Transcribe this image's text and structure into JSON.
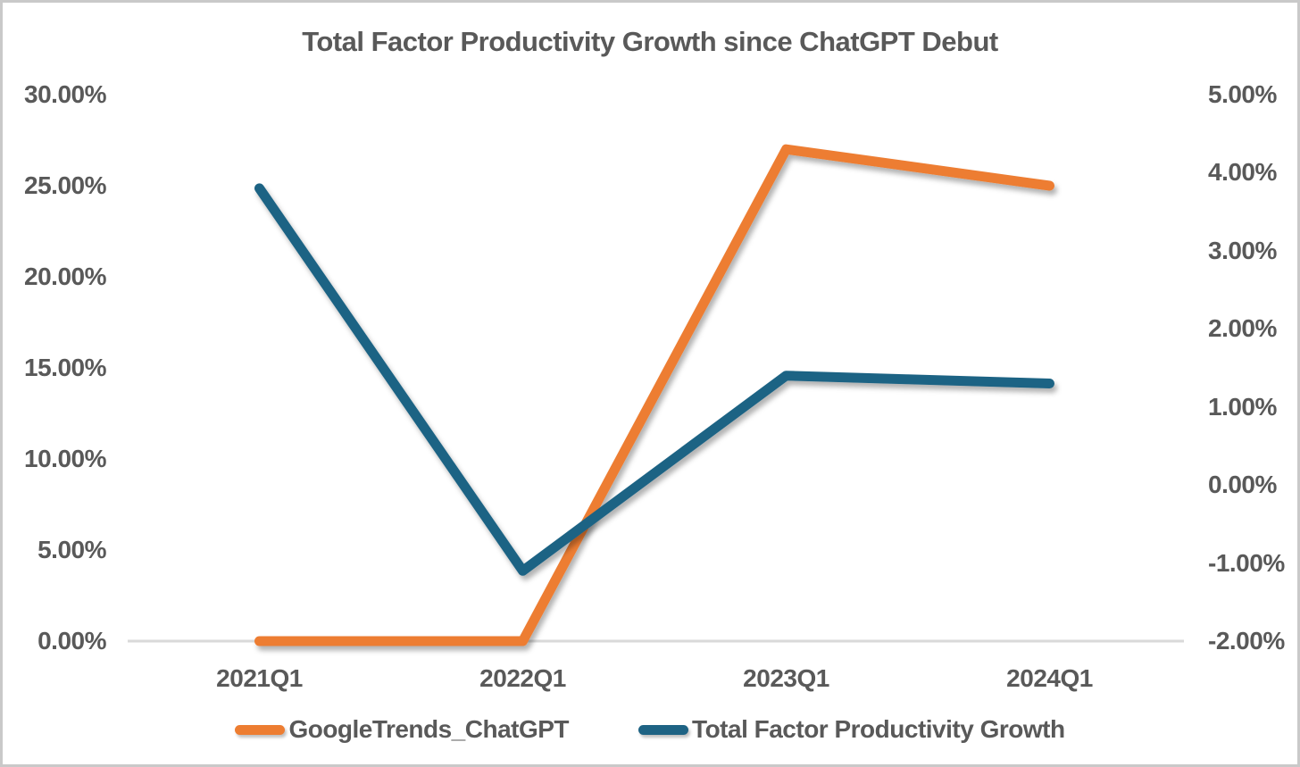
{
  "chart_data": {
    "type": "line",
    "title": "Total Factor Productivity Growth since ChatGPT Debut",
    "categories": [
      "2021Q1",
      "2022Q1",
      "2023Q1",
      "2024Q1"
    ],
    "series": [
      {
        "name": "GoogleTrends_ChatGPT",
        "axis": "left",
        "color": "#ED7D31",
        "values_pct": [
          0,
          0,
          27,
          25
        ]
      },
      {
        "name": "Total Factor Productivity Growth",
        "axis": "right",
        "color": "#1E6384",
        "values_pct": [
          3.8,
          -1.1,
          1.4,
          1.3
        ]
      }
    ],
    "left_axis": {
      "min": 0,
      "max": 30,
      "ticks": [
        "30.00%",
        "25.00%",
        "20.00%",
        "15.00%",
        "10.00%",
        "5.00%",
        "0.00%"
      ]
    },
    "right_axis": {
      "min": -2,
      "max": 5,
      "ticks": [
        "5.00%",
        "4.00%",
        "3.00%",
        "2.00%",
        "1.00%",
        "0.00%",
        "-1.00%",
        "-2.00%"
      ]
    },
    "grid": false,
    "legend_position": "bottom"
  },
  "colors": {
    "text": "#595959",
    "axis_line": "#d9d9d9",
    "border": "#c9c9c9",
    "background": "#ffffff"
  }
}
